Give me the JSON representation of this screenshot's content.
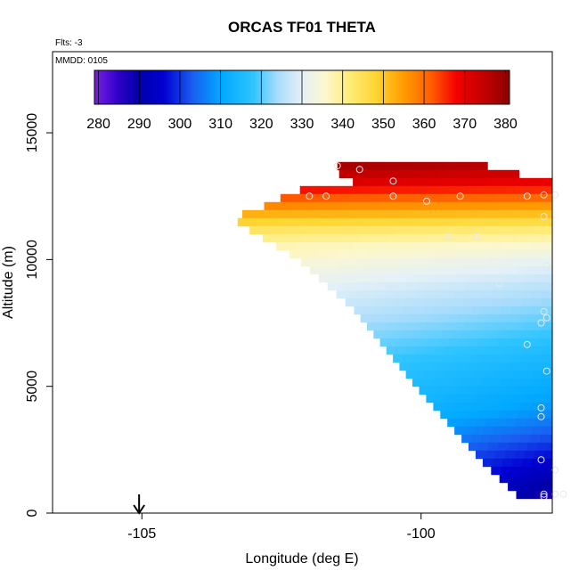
{
  "chart_data": {
    "type": "heatmap",
    "title": "ORCAS TF01 THETA",
    "notes": [
      "Flts: -3",
      "MMDD: 0105"
    ],
    "xlabel": "Longitude (deg E)",
    "ylabel": "Altitude (m)",
    "xlim": [
      -106.6,
      -97.65
    ],
    "ylim": [
      0,
      18200
    ],
    "x_ticks": [
      -105,
      -100
    ],
    "y_ticks": [
      0,
      5000,
      10000,
      15000
    ],
    "colorbar": {
      "ticks": [
        280,
        290,
        300,
        310,
        320,
        330,
        340,
        350,
        360,
        370,
        380
      ],
      "range": [
        279,
        381
      ],
      "stops": [
        {
          "v": 279,
          "c": "#7a1fe6"
        },
        {
          "v": 285,
          "c": "#2d00c8"
        },
        {
          "v": 290,
          "c": "#0000a8"
        },
        {
          "v": 296,
          "c": "#0000d2"
        },
        {
          "v": 303,
          "c": "#1a5cf0"
        },
        {
          "v": 310,
          "c": "#00a8ff"
        },
        {
          "v": 318,
          "c": "#2ec4ff"
        },
        {
          "v": 324,
          "c": "#a8dcfb"
        },
        {
          "v": 330,
          "c": "#e6f1f7"
        },
        {
          "v": 336,
          "c": "#fcf7cc"
        },
        {
          "v": 341,
          "c": "#ffee80"
        },
        {
          "v": 348,
          "c": "#ffd633"
        },
        {
          "v": 355,
          "c": "#ff9c00"
        },
        {
          "v": 362,
          "c": "#ff5a00"
        },
        {
          "v": 368,
          "c": "#f50000"
        },
        {
          "v": 375,
          "c": "#c00000"
        },
        {
          "v": 381,
          "c": "#8b0000"
        }
      ]
    },
    "field_profile": {
      "altitude_m": [
        0,
        1000,
        2000,
        3000,
        4000,
        5000,
        6000,
        7000,
        8000,
        9000,
        10000,
        10600,
        11100,
        11600,
        12100,
        12600,
        13100,
        13700
      ],
      "theta_K": [
        282,
        289,
        295,
        302,
        308,
        311,
        314,
        318,
        322,
        326,
        331,
        336,
        341,
        348,
        355,
        363,
        370,
        376
      ]
    },
    "domain_edge": {
      "altitude_m": [
        0,
        2000,
        5000,
        8000,
        10000,
        11200,
        11500,
        11800,
        12200,
        12700,
        13100,
        13400,
        13800
      ],
      "west_lon": [
        -97.95,
        -98.9,
        -100.1,
        -101.2,
        -102.2,
        -103.1,
        -103.3,
        -103.2,
        -102.7,
        -102.3,
        -101.1,
        -101.5,
        -101.5
      ],
      "east_lon": [
        -97.65,
        -97.65,
        -97.65,
        -97.65,
        -97.65,
        -97.65,
        -97.65,
        -97.65,
        -97.65,
        -97.65,
        -97.65,
        -98.3,
        -99.0
      ]
    },
    "points": [
      {
        "x": -101.5,
        "y": 13700
      },
      {
        "x": -101.1,
        "y": 13550
      },
      {
        "x": -100.5,
        "y": 13100
      },
      {
        "x": -102.0,
        "y": 12500
      },
      {
        "x": -101.7,
        "y": 12500
      },
      {
        "x": -100.5,
        "y": 12500
      },
      {
        "x": -99.9,
        "y": 12300
      },
      {
        "x": -99.3,
        "y": 12500
      },
      {
        "x": -98.1,
        "y": 12500
      },
      {
        "x": -97.8,
        "y": 12550
      },
      {
        "x": -97.6,
        "y": 12550
      },
      {
        "x": -97.8,
        "y": 11700
      },
      {
        "x": -99.5,
        "y": 10900
      },
      {
        "x": -99.0,
        "y": 10900
      },
      {
        "x": -97.75,
        "y": 9750
      },
      {
        "x": -98.6,
        "y": 9050
      },
      {
        "x": -97.8,
        "y": 7950
      },
      {
        "x": -97.75,
        "y": 7700
      },
      {
        "x": -97.85,
        "y": 7500
      },
      {
        "x": -98.1,
        "y": 6650
      },
      {
        "x": -97.75,
        "y": 5600
      },
      {
        "x": -97.85,
        "y": 4150
      },
      {
        "x": -97.85,
        "y": 3800
      },
      {
        "x": -97.85,
        "y": 2100
      },
      {
        "x": -97.6,
        "y": 1700
      },
      {
        "x": -97.8,
        "y": 750
      },
      {
        "x": -97.8,
        "y": 650
      },
      {
        "x": -97.6,
        "y": 750
      },
      {
        "x": -97.45,
        "y": 750
      }
    ],
    "marker": {
      "x": -105.05
    }
  }
}
